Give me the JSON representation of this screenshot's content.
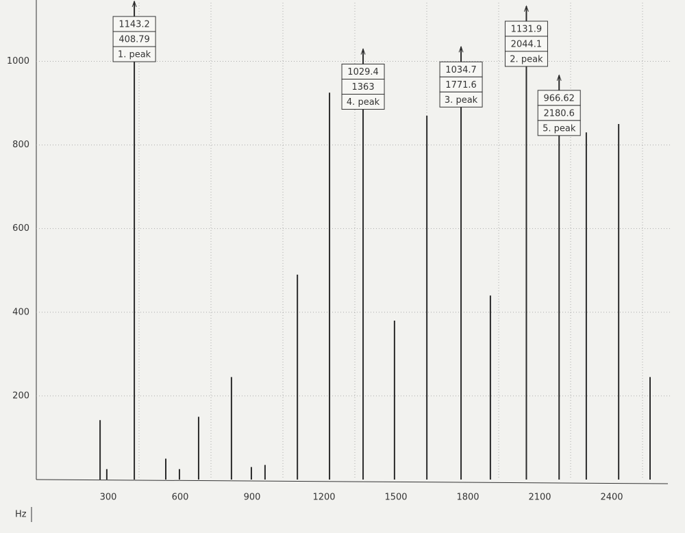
{
  "chart_data": {
    "type": "spectrum",
    "x_label": "Hz",
    "xlim": [
      0,
      2620
    ],
    "xticks": [
      300,
      600,
      900,
      1200,
      1500,
      1800,
      2100,
      2400
    ],
    "ylim": [
      0,
      1140
    ],
    "yticks": [
      200,
      400,
      600,
      800,
      1000
    ],
    "grid": true,
    "color": "#2a2a2a",
    "series": [
      {
        "x": [
          266,
          294,
          540,
          597,
          677,
          814,
          897,
          954,
          1089,
          1223,
          1494,
          1629,
          1894,
          2294,
          2429,
          2560
        ],
        "values": [
          142,
          25,
          50,
          25,
          150,
          245,
          30,
          35,
          490,
          925,
          380,
          870,
          440,
          830,
          850,
          245
        ]
      }
    ],
    "peaks": [
      {
        "label": "1. peak",
        "x": 408.79,
        "y": 1143.2
      },
      {
        "label": "2. peak",
        "x": 2044.1,
        "y": 1131.9
      },
      {
        "label": "3. peak",
        "x": 1771.6,
        "y": 1034.7
      },
      {
        "label": "4. peak",
        "x": 1363,
        "y": 1029.4
      },
      {
        "label": "5. peak",
        "x": 2180.6,
        "y": 966.62
      }
    ]
  }
}
